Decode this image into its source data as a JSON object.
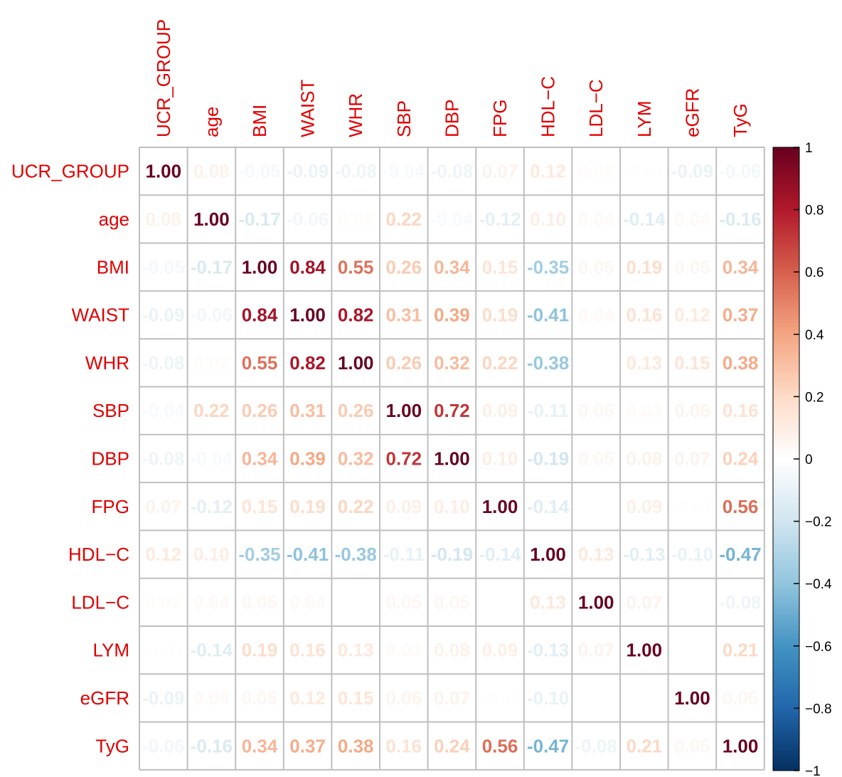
{
  "chart_data": {
    "type": "heatmap",
    "variables": [
      "UCR_GROUP",
      "age",
      "BMI",
      "WAIST",
      "WHR",
      "SBP",
      "DBP",
      "FPG",
      "HDL−C",
      "LDL−C",
      "LYM",
      "eGFR",
      "TyG"
    ],
    "matrix": [
      [
        1.0,
        0.08,
        -0.05,
        -0.09,
        -0.08,
        -0.04,
        -0.08,
        0.07,
        0.12,
        0.02,
        -0.01,
        -0.09,
        -0.06
      ],
      [
        0.08,
        1.0,
        -0.17,
        -0.06,
        0.02,
        0.22,
        -0.04,
        -0.12,
        0.1,
        0.04,
        -0.14,
        0.04,
        -0.16
      ],
      [
        -0.05,
        -0.17,
        1.0,
        0.84,
        0.55,
        0.26,
        0.34,
        0.15,
        -0.35,
        0.05,
        0.19,
        0.05,
        0.34
      ],
      [
        -0.09,
        -0.06,
        0.84,
        1.0,
        0.82,
        0.31,
        0.39,
        0.19,
        -0.41,
        0.04,
        0.16,
        0.12,
        0.37
      ],
      [
        -0.08,
        0.02,
        0.55,
        0.82,
        1.0,
        0.26,
        0.32,
        0.22,
        -0.38,
        0.0,
        0.13,
        0.15,
        0.38
      ],
      [
        -0.04,
        0.22,
        0.26,
        0.31,
        0.26,
        1.0,
        0.72,
        0.09,
        -0.11,
        0.05,
        0.03,
        0.06,
        0.16
      ],
      [
        -0.08,
        -0.04,
        0.34,
        0.39,
        0.32,
        0.72,
        1.0,
        0.1,
        -0.19,
        0.05,
        0.08,
        0.07,
        0.24
      ],
      [
        0.07,
        -0.12,
        0.15,
        0.19,
        0.22,
        0.09,
        0.1,
        1.0,
        -0.14,
        0.0,
        0.09,
        -0.01,
        0.56
      ],
      [
        0.12,
        0.1,
        -0.35,
        -0.41,
        -0.38,
        -0.11,
        -0.19,
        -0.14,
        1.0,
        0.13,
        -0.13,
        -0.1,
        -0.47
      ],
      [
        0.02,
        0.04,
        0.05,
        0.04,
        0.0,
        0.05,
        0.05,
        0.0,
        0.13,
        1.0,
        0.07,
        0.0,
        -0.08
      ],
      [
        -0.01,
        -0.14,
        0.19,
        0.16,
        0.13,
        0.03,
        0.08,
        0.09,
        -0.13,
        0.07,
        1.0,
        0.0,
        0.21
      ],
      [
        -0.09,
        0.04,
        0.05,
        0.12,
        0.15,
        0.06,
        0.07,
        -0.01,
        -0.1,
        0.0,
        0.0,
        1.0,
        0.05
      ],
      [
        -0.06,
        -0.16,
        0.34,
        0.37,
        0.38,
        0.16,
        0.24,
        0.56,
        -0.47,
        -0.08,
        0.21,
        0.05,
        1.0
      ]
    ],
    "colorbar": {
      "range": [
        -1,
        1
      ],
      "ticks": [
        1,
        0.8,
        0.6,
        0.4,
        0.2,
        0,
        -0.2,
        -0.4,
        -0.6,
        -0.8,
        -1
      ],
      "tick_labels": [
        "1",
        "0.8",
        "0.6",
        "0.4",
        "0.2",
        "0",
        "−0.2",
        "−0.4",
        "−0.6",
        "−0.8",
        "−1"
      ],
      "colors": [
        "#67001f",
        "#b2182b",
        "#d6604d",
        "#f4a582",
        "#fddbc7",
        "#ffffff",
        "#d1e5f0",
        "#92c5de",
        "#4393c3",
        "#2166ac",
        "#053061"
      ]
    },
    "grid": true,
    "label_color": "#e00000"
  }
}
